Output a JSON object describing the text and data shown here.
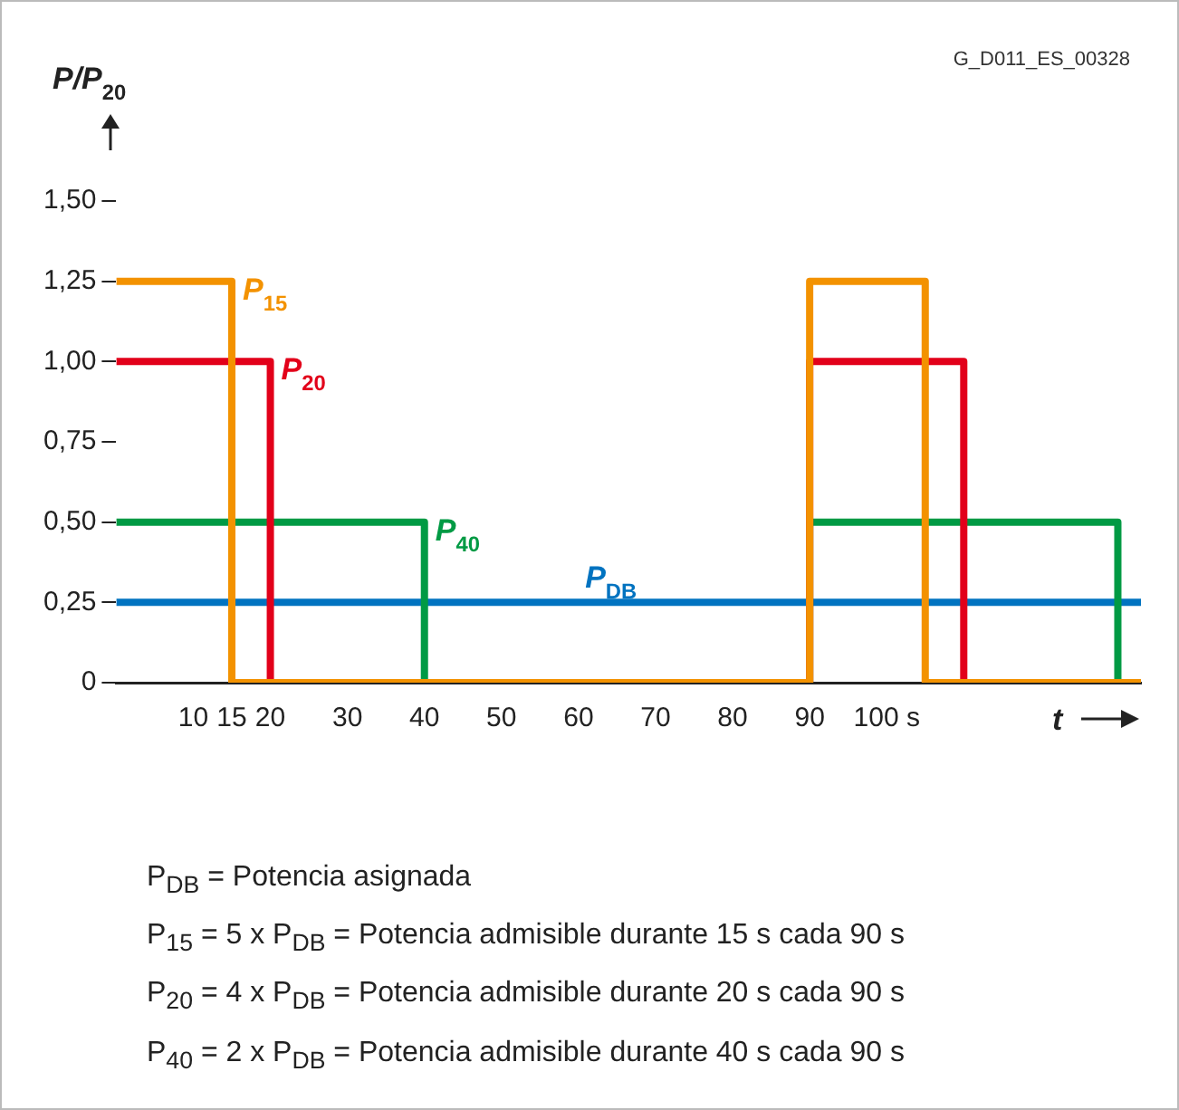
{
  "chart_data": {
    "type": "line",
    "xlabel": "t",
    "ylabel": "P/P$_{20}$",
    "xlim": [
      0,
      133
    ],
    "xticks": [
      10,
      15,
      20,
      30,
      40,
      50,
      60,
      70,
      80,
      90,
      {
        "value": 100,
        "label": "100 s"
      }
    ],
    "ylim": [
      0,
      1.5
    ],
    "yticks": [
      {
        "value": 0,
        "label": "0"
      },
      {
        "value": 0.25,
        "label": "0,25"
      },
      {
        "value": 0.5,
        "label": "0,50"
      },
      {
        "value": 0.75,
        "label": "0,75"
      },
      {
        "value": 1,
        "label": "1,00"
      },
      {
        "value": 1.25,
        "label": "1,25"
      },
      {
        "value": 1.5,
        "label": "1,50"
      }
    ],
    "grid": false,
    "legend": false,
    "marker": "none",
    "line_style": "solid",
    "series": [
      {
        "name": "P$_{15}$",
        "color": "#f39200",
        "x": [
          0,
          15,
          15,
          90,
          90,
          105,
          105,
          133
        ],
        "values": [
          1.25,
          1.25,
          0,
          0,
          1.25,
          1.25,
          0,
          0
        ]
      },
      {
        "name": "P$_{20}$",
        "color": "#e2001a",
        "x": [
          0,
          20,
          20,
          90,
          90,
          110,
          110,
          133
        ],
        "values": [
          1,
          1,
          0,
          0,
          1,
          1,
          0,
          0
        ]
      },
      {
        "name": "P$_{40}$",
        "color": "#009a44",
        "x": [
          0,
          40,
          40,
          90,
          90,
          130,
          130,
          133
        ],
        "values": [
          0.5,
          0.5,
          0,
          0,
          0.5,
          0.5,
          0,
          0
        ]
      },
      {
        "name": "P$_{DB}$",
        "color": "#0073c0",
        "x": [
          0,
          133
        ],
        "values": [
          0.25,
          0.25
        ]
      }
    ],
    "annotations": [
      "G_D011_ES_00328",
      "P$_{DB}$ = Potencia asignada",
      "P$_{15}$ = 5 x P$_{DB}$ = Potencia admisible durante 15 s cada 90 s",
      "P$_{20}$ = 4 x P$_{DB}$ = Potencia admisible durante 20 s cada 90 s",
      "P$_{40}$ = 2 x P$_{DB}$ = Potencia admisible durante 40 s cada 90 s"
    ]
  }
}
